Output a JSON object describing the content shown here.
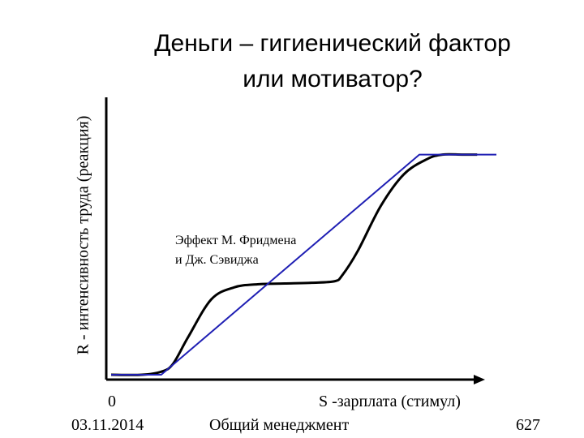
{
  "title": {
    "line1": "Деньги – гигиенический фактор",
    "line2": "или мотиватор?"
  },
  "footer": {
    "date": "03.11.2014",
    "subject": "Общий менеджмент",
    "page": "627"
  },
  "chart_data": {
    "type": "line",
    "ylabel": "R - интенсивность труда (реакция)",
    "xlabel": "S -зарплата (стимул)",
    "x_origin_label": "0",
    "annotation": [
      "Эффект М. Фридмена",
      "и Дж. Сэвиджа"
    ],
    "colors": {
      "curve": "#000000",
      "linear": "#1f1fb4",
      "axes": "#000000"
    },
    "series": [
      {
        "kind": "curve",
        "x": [
          0,
          8,
          13,
          16,
          20,
          26,
          32,
          38,
          45,
          52,
          58,
          60,
          64,
          70,
          76,
          82,
          86,
          91,
          95
        ],
        "y": [
          0,
          0,
          2,
          7,
          25,
          50,
          58,
          60,
          60.5,
          61,
          62,
          66,
          82,
          112,
          133,
          143,
          146,
          146,
          146
        ]
      },
      {
        "kind": "linear",
        "x": [
          0,
          13,
          80,
          100
        ],
        "y": [
          0,
          0,
          146,
          146
        ]
      }
    ],
    "xlim": [
      0,
      100
    ],
    "ylim": [
      0,
      170
    ],
    "grid": false
  }
}
